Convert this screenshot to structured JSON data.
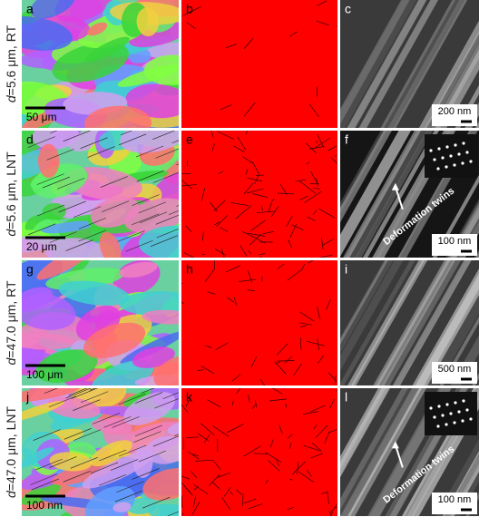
{
  "rows": [
    {
      "label": {
        "symbol": "d",
        "text": "=5.6 μm, RT"
      },
      "panels": [
        {
          "letter": "a",
          "scale_bar": "50 μm"
        },
        {
          "letter": "b"
        },
        {
          "letter": "c",
          "scale_bar": "200 nm"
        }
      ]
    },
    {
      "label": {
        "symbol": "d",
        "text": "=5.6 μm, LNT"
      },
      "panels": [
        {
          "letter": "d",
          "scale_bar": "20 μm"
        },
        {
          "letter": "e"
        },
        {
          "letter": "f",
          "scale_bar": "100 nm",
          "annotation": "Deformation twins"
        }
      ]
    },
    {
      "label": {
        "symbol": "d",
        "text": "=47.0 μm, RT"
      },
      "panels": [
        {
          "letter": "g",
          "scale_bar": "100 μm"
        },
        {
          "letter": "h"
        },
        {
          "letter": "i",
          "scale_bar": "500 nm"
        }
      ]
    },
    {
      "label": {
        "symbol": "d",
        "text": "=47.0 μm, LNT"
      },
      "panels": [
        {
          "letter": "j",
          "scale_bar": "100 nm"
        },
        {
          "letter": "k"
        },
        {
          "letter": "l",
          "scale_bar": "100 nm",
          "annotation": "Deformation twins"
        }
      ]
    }
  ]
}
